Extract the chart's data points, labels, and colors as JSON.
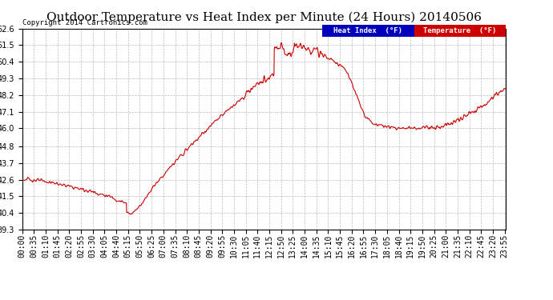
{
  "title": "Outdoor Temperature vs Heat Index per Minute (24 Hours) 20140506",
  "copyright": "Copyright 2014 Cartronics.com",
  "legend_labels": [
    "Heat Index  (°F)",
    "Temperature  (°F)"
  ],
  "legend_colors": [
    "#0000bb",
    "#cc0000"
  ],
  "line_color": "#cc0000",
  "bg_color": "#ffffff",
  "plot_bg_color": "#ffffff",
  "grid_color": "#bbbbbb",
  "ylim": [
    39.3,
    52.6
  ],
  "yticks": [
    39.3,
    40.4,
    41.5,
    42.6,
    43.7,
    44.8,
    46.0,
    47.1,
    48.2,
    49.3,
    50.4,
    51.5,
    52.6
  ],
  "xtick_interval": 35,
  "total_minutes": 1440,
  "title_fontsize": 11,
  "axis_fontsize": 7
}
